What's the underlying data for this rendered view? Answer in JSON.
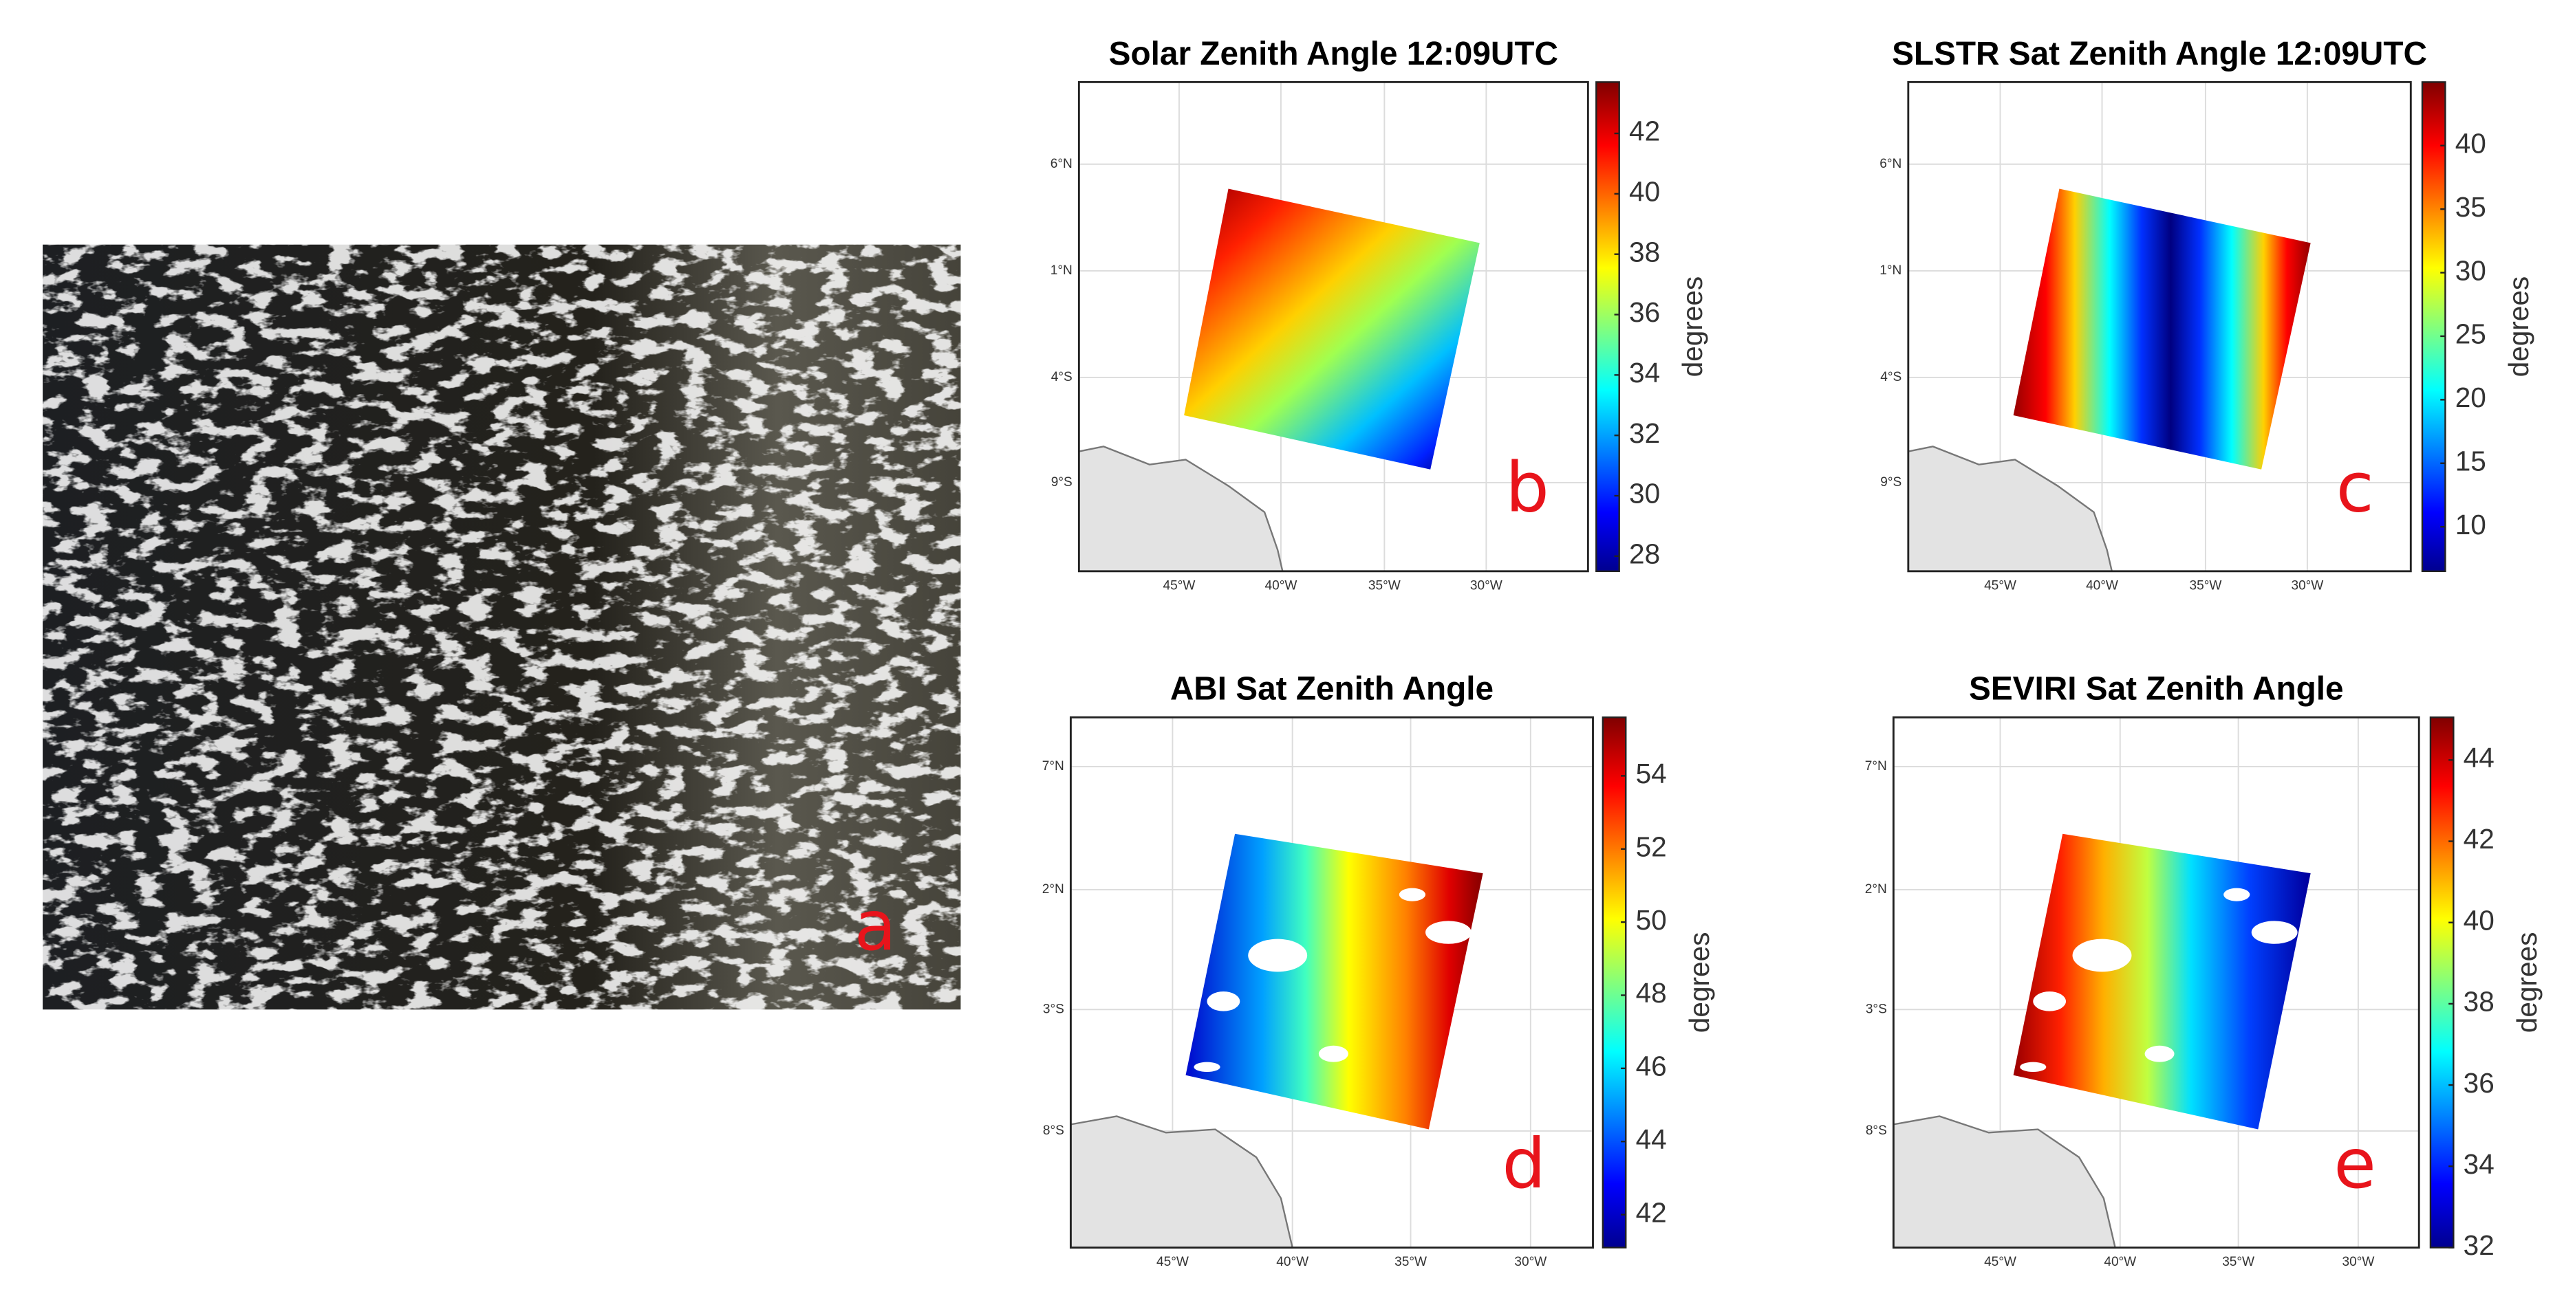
{
  "image_panel": {
    "label": "a"
  },
  "maps": [
    {
      "title": "Solar Zenith Angle 12:09UTC",
      "label": "b",
      "colorbar": {
        "label": "degrees",
        "lim": [
          27.5,
          43.7
        ],
        "ticks": [
          28,
          30,
          32,
          34,
          36,
          38,
          40,
          42
        ]
      },
      "lat_ticks": [
        "6°N",
        "1°N",
        "4°S",
        "9°S"
      ],
      "lon_ticks": [
        "45°W",
        "40°W",
        "35°W",
        "30°W"
      ]
    },
    {
      "title": "SLSTR Sat Zenith Angle 12:09UTC",
      "label": "c",
      "colorbar": {
        "label": "degrees",
        "lim": [
          6.5,
          45
        ],
        "ticks": [
          10,
          15,
          20,
          25,
          30,
          35,
          40
        ]
      },
      "lat_ticks": [
        "6°N",
        "1°N",
        "4°S",
        "9°S"
      ],
      "lon_ticks": [
        "45°W",
        "40°W",
        "35°W",
        "30°W"
      ]
    },
    {
      "title": "ABI Sat Zenith Angle",
      "label": "d",
      "colorbar": {
        "label": "degrees",
        "lim": [
          41.1,
          55.6
        ],
        "ticks": [
          42,
          44,
          46,
          48,
          50,
          52,
          54
        ]
      },
      "lat_ticks": [
        "7°N",
        "2°N",
        "3°S",
        "8°S"
      ],
      "lon_ticks": [
        "45°W",
        "40°W",
        "35°W",
        "30°W"
      ]
    },
    {
      "title": "SEVIRI Sat Zenith Angle",
      "label": "e",
      "colorbar": {
        "label": "degrees",
        "lim": [
          32,
          45.05
        ],
        "ticks": [
          32,
          34,
          36,
          38,
          40,
          42,
          44
        ]
      },
      "lat_ticks": [
        "7°N",
        "2°N",
        "3°S",
        "8°S"
      ],
      "lon_ticks": [
        "45°W",
        "40°W",
        "35°W",
        "30°W"
      ]
    }
  ]
}
